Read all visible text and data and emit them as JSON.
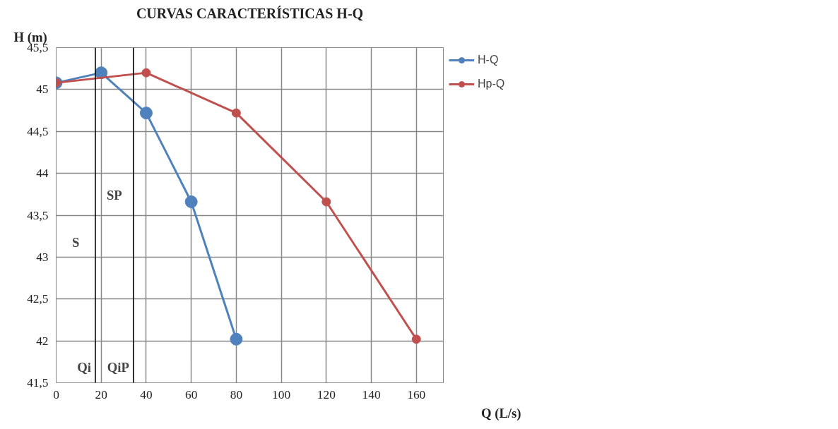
{
  "chart_data": {
    "type": "line",
    "title": "CURVAS CARACTERÍSTICAS H-Q",
    "xlabel": "Q (L/s)",
    "ylabel": "H (m)",
    "xlim": [
      0,
      172
    ],
    "xticks": [
      0,
      20,
      40,
      60,
      80,
      100,
      120,
      140,
      160
    ],
    "ylim": [
      41.5,
      45.5
    ],
    "yticks": [
      {
        "value": 41.5,
        "label": "41,5"
      },
      42,
      {
        "value": 42.5,
        "label": "42,5"
      },
      43,
      {
        "value": 43.5,
        "label": "43,5"
      },
      44,
      {
        "value": 44.5,
        "label": "44,5"
      },
      45,
      {
        "value": 45.5,
        "label": "45,5"
      }
    ],
    "grid": true,
    "legend": "right",
    "marker": "circle",
    "line_style": "solid",
    "series": [
      {
        "name": "H-Q",
        "color": "#4f81bd",
        "x": [
          0,
          20,
          40,
          60,
          80
        ],
        "values": [
          45.08,
          45.2,
          44.72,
          43.66,
          42.02
        ]
      },
      {
        "name": "Hp-Q",
        "color": "#c0504d",
        "x": [
          0,
          40,
          80,
          120,
          160
        ],
        "values": [
          45.08,
          45.2,
          44.72,
          43.66,
          42.02
        ]
      }
    ],
    "ref_lines": [
      {
        "axis": "x",
        "value": 17.4,
        "label": "Qi",
        "color": "#000000"
      },
      {
        "axis": "x",
        "value": 34.3,
        "label": "QiP",
        "color": "#000000"
      }
    ],
    "annotations": [
      "S",
      "SP"
    ]
  }
}
